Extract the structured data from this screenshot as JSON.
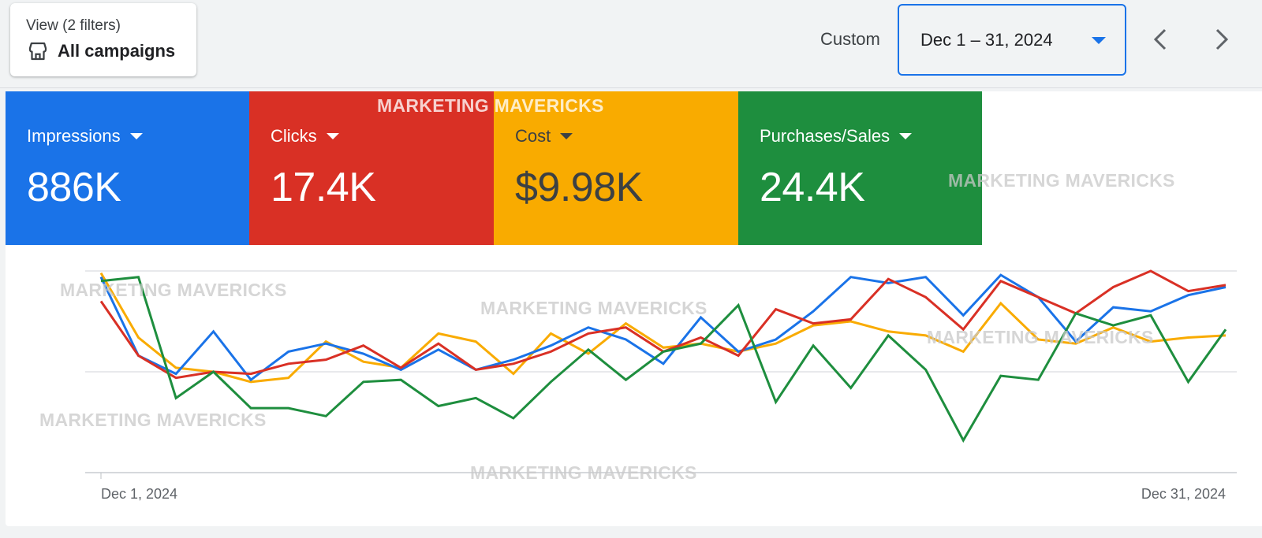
{
  "view_selector": {
    "label": "View (2 filters)",
    "value": "All campaigns",
    "icon": "store-icon"
  },
  "date_range": {
    "preset": "Custom",
    "value": "Dec 1 – 31, 2024",
    "accent": "#1a73e8"
  },
  "metrics": [
    {
      "name": "Impressions",
      "value": "886K",
      "color": "#1a73e8"
    },
    {
      "name": "Clicks",
      "value": "17.4K",
      "color": "#d93025"
    },
    {
      "name": "Cost",
      "value": "$9.98K",
      "color": "#f9ab00"
    },
    {
      "name": "Purchases/Sales",
      "value": "24.4K",
      "color": "#1e8e3e"
    }
  ],
  "watermark": "MARKETING MAVERICKS",
  "chart_data": {
    "type": "line",
    "x_start_label": "Dec 1, 2024",
    "x_end_label": "Dec 31, 2024",
    "x": [
      1,
      2,
      3,
      4,
      5,
      6,
      7,
      8,
      9,
      10,
      11,
      12,
      13,
      14,
      15,
      16,
      17,
      18,
      19,
      20,
      21,
      22,
      23,
      24,
      25,
      26,
      27,
      28,
      29,
      30,
      31
    ],
    "ylim": [
      0,
      100
    ],
    "grid": true,
    "series": [
      {
        "name": "Impressions",
        "color": "#1a73e8",
        "values": [
          97,
          58,
          49,
          70,
          46,
          60,
          64,
          59,
          51,
          61,
          51,
          56,
          63,
          72,
          66,
          54,
          77,
          60,
          66,
          80,
          97,
          94,
          97,
          78,
          98,
          87,
          65,
          82,
          80,
          88,
          92
        ]
      },
      {
        "name": "Clicks",
        "color": "#d93025",
        "values": [
          85,
          58,
          47,
          50,
          49,
          54,
          56,
          63,
          52,
          64,
          51,
          54,
          60,
          69,
          72,
          60,
          67,
          58,
          81,
          74,
          76,
          96,
          87,
          71,
          95,
          87,
          79,
          92,
          100,
          90,
          93
        ]
      },
      {
        "name": "Cost",
        "color": "#f9ab00",
        "values": [
          99,
          67,
          52,
          50,
          45,
          47,
          65,
          55,
          52,
          69,
          65,
          49,
          69,
          59,
          74,
          62,
          64,
          60,
          64,
          73,
          75,
          70,
          68,
          60,
          84,
          66,
          64,
          72,
          65,
          67,
          68
        ]
      },
      {
        "name": "Purchases/Sales",
        "color": "#1e8e3e",
        "values": [
          95,
          97,
          37,
          50,
          32,
          32,
          28,
          45,
          46,
          33,
          37,
          27,
          45,
          61,
          46,
          60,
          64,
          83,
          35,
          63,
          42,
          68,
          51,
          16,
          48,
          46,
          79,
          73,
          78,
          45,
          71
        ]
      }
    ]
  }
}
